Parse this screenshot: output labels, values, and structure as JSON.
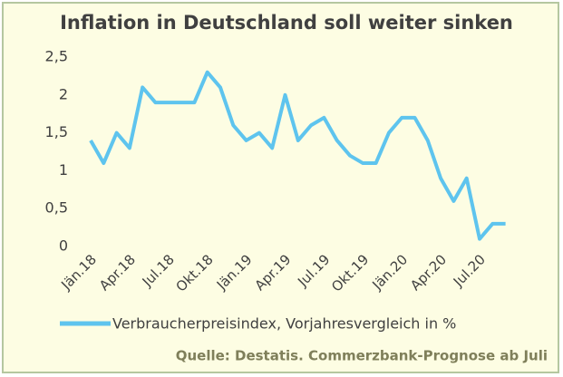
{
  "chart_data": {
    "type": "line",
    "title": "Inflation in Deutschland soll weiter sinken",
    "categories": [
      "Jän.18",
      null,
      null,
      "Apr.18",
      null,
      null,
      "Jul.18",
      null,
      null,
      "Okt.18",
      null,
      null,
      "Jän.19",
      null,
      null,
      "Apr.19",
      null,
      null,
      "Jul.19",
      null,
      null,
      "Okt.19",
      null,
      null,
      "Jän.20",
      null,
      null,
      "Apr.20",
      null,
      null,
      "Jul.20",
      null,
      null
    ],
    "series": [
      {
        "name": "Verbraucherpreisindex, Vorjahresvergleich in %",
        "color": "#5ec4ee",
        "values": [
          1.4,
          1.1,
          1.5,
          1.3,
          2.1,
          1.9,
          1.9,
          1.9,
          1.9,
          2.3,
          2.1,
          1.6,
          1.4,
          1.5,
          1.3,
          2.0,
          1.4,
          1.6,
          1.7,
          1.4,
          1.2,
          1.1,
          1.1,
          1.5,
          1.7,
          1.7,
          1.4,
          0.9,
          0.6,
          0.9,
          0.1,
          0.3,
          0.3
        ]
      }
    ],
    "ylim": [
      0,
      2.5
    ],
    "yticks": [
      0,
      {
        "value": 0.5,
        "label": "0,5"
      },
      1,
      {
        "value": 1.5,
        "label": "1,5"
      },
      2,
      {
        "value": 2.5,
        "label": "2,5"
      }
    ],
    "grid": false,
    "source": "Quelle: Destatis. Commerzbank-Prognose ab Juli"
  }
}
